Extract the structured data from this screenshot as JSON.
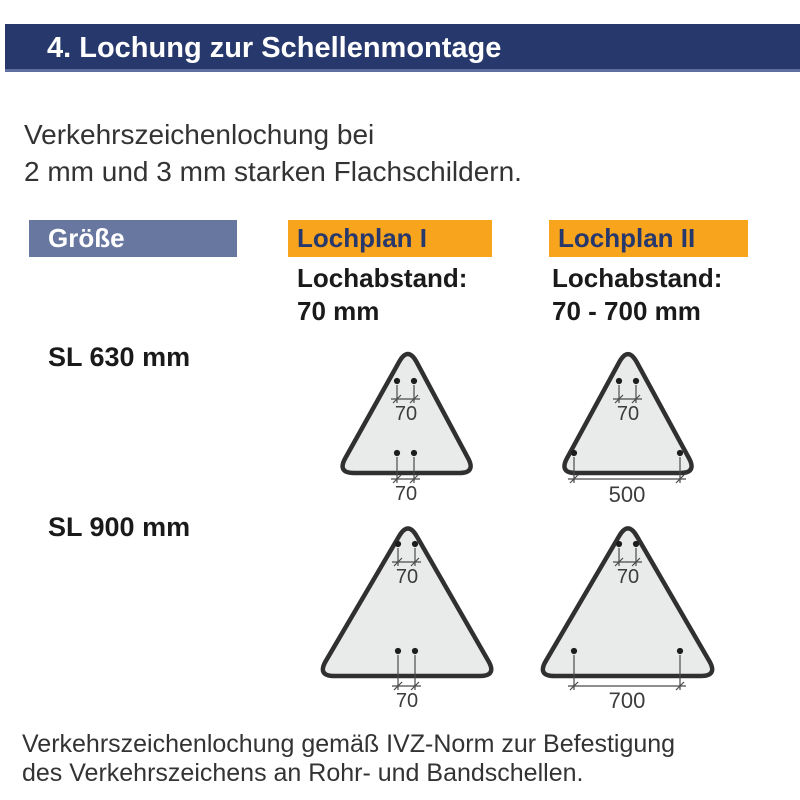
{
  "header": {
    "title": "4. Lochung zur Schellenmontage"
  },
  "intro": {
    "line1": "Verkehrszeichenlochung bei",
    "line2": "2 mm und 3 mm starken Flachschildern."
  },
  "columns": {
    "size_label": "Größe",
    "plan1": {
      "label": "Lochplan I",
      "subtitle_line1": "Lochabstand:",
      "subtitle_line2": "70 mm"
    },
    "plan2": {
      "label": "Lochplan II",
      "subtitle_line1": "Lochabstand:",
      "subtitle_line2": "70 - 700 mm"
    }
  },
  "rows": [
    {
      "size": "SL 630 mm",
      "plan1": {
        "top_dim": "70",
        "bottom_dim": "70"
      },
      "plan2": {
        "top_dim": "70",
        "bottom_dim": "500"
      }
    },
    {
      "size": "SL 900 mm",
      "plan1": {
        "top_dim": "70",
        "bottom_dim": "70"
      },
      "plan2": {
        "top_dim": "70",
        "bottom_dim": "700"
      }
    }
  ],
  "footer": {
    "line1": "Verkehrszeichenlochung gemäß IVZ-Norm zur Befestigung",
    "line2": "des Verkehrszeichens an Rohr- und Bandschellen."
  },
  "colors": {
    "header_bg": "#27386D",
    "accent_orange": "#F8A41D",
    "size_header_bg": "#68779F",
    "sign_fill": "#E9EBEA",
    "sign_border": "#303030",
    "dimension_gray": "#4a4a4a"
  }
}
